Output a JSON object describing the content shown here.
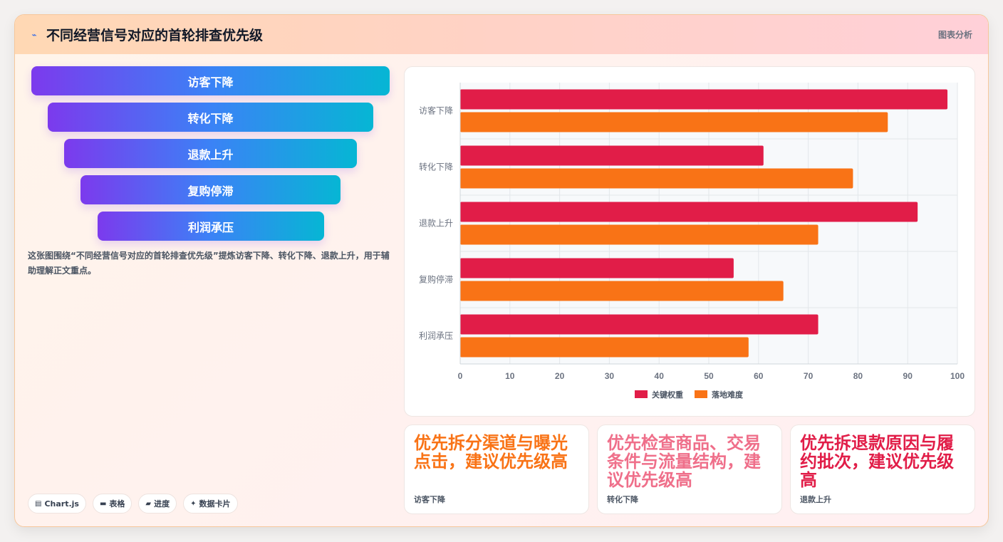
{
  "header": {
    "icon": "ribbon-icon",
    "title": "不同经营信号对应的首轮排查优先级",
    "tag": "图表分析"
  },
  "funnel": [
    "访客下降",
    "转化下降",
    "退款上升",
    "复购停滞",
    "利润承压"
  ],
  "description": "这张图围绕“不同经营信号对应的首轮排查优先级”提炼访客下降、转化下降、退款上升，用于辅助理解正文重点。",
  "chips": [
    {
      "icon": "chart-icon",
      "label": "Chart.js"
    },
    {
      "icon": "table-icon",
      "label": "表格"
    },
    {
      "icon": "progress-icon",
      "label": "进度"
    },
    {
      "icon": "sparkle-icon",
      "label": "数据卡片"
    }
  ],
  "colors": {
    "series1": "#e11d48",
    "series2": "#f97316",
    "card2": "#ef6f8a",
    "funnel_start": "#7c3aed",
    "funnel_end": "#06b6d4"
  },
  "chart_data": {
    "type": "bar",
    "orientation": "horizontal",
    "categories": [
      "访客下降",
      "转化下降",
      "退款上升",
      "复购停滞",
      "利润承压"
    ],
    "series": [
      {
        "name": "关键权重",
        "values": [
          98,
          61,
          92,
          55,
          72
        ]
      },
      {
        "name": "落地难度",
        "values": [
          86,
          79,
          72,
          65,
          58
        ]
      }
    ],
    "xlim": [
      0,
      100
    ],
    "xticks": [
      0,
      10,
      20,
      30,
      40,
      50,
      60,
      70,
      80,
      90,
      100
    ],
    "grid": true,
    "legend": "bottom"
  },
  "cards": [
    {
      "value": "优先拆分渠道与曝光点击，建议优先级高",
      "label": "访客下降"
    },
    {
      "value": "优先检查商品、交易条件与流量结构，建议优先级高",
      "label": "转化下降"
    },
    {
      "value": "优先拆退款原因与履约批次，建议优先级高",
      "label": "退款上升"
    }
  ]
}
